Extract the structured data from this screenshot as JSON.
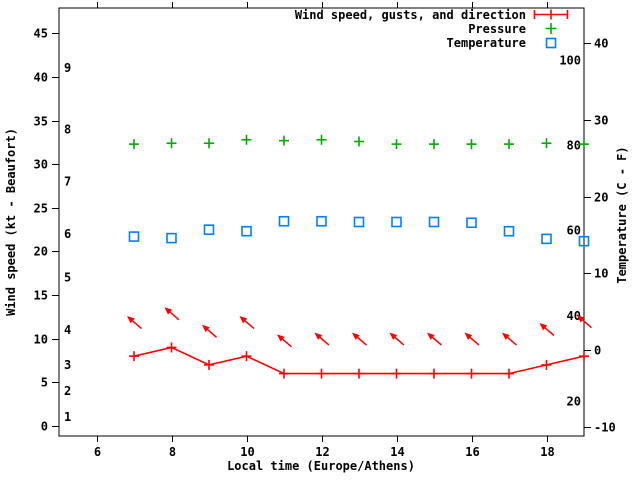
{
  "page": {
    "background": "#ffffff"
  },
  "colors": {
    "wind": "#ff0000",
    "pressure": "#00aa00",
    "temperature": "#0080ff",
    "text": "#000000",
    "axis": "#000000"
  },
  "legend": {
    "position": "top-right-inside",
    "entries": [
      {
        "label": "Wind speed, gusts, and direction",
        "marker": "errorbar-plus",
        "series": "wind"
      },
      {
        "label": "Pressure",
        "marker": "plus",
        "series": "pressure"
      },
      {
        "label": "Temperature",
        "marker": "open-square",
        "series": "temperature"
      }
    ]
  },
  "chart_data": {
    "type": "line",
    "title": "",
    "grid": false,
    "x": [
      7,
      8,
      9,
      10,
      11,
      12,
      13,
      14,
      15,
      16,
      17,
      18,
      19
    ],
    "series": [
      {
        "name": "Wind speed, gusts, and direction",
        "axis": "left",
        "unit": "kt",
        "marker": "plus",
        "line": true,
        "values": [
          8,
          9,
          7,
          8,
          6,
          6,
          6,
          6,
          6,
          6,
          6,
          7,
          8
        ]
      },
      {
        "name": "Pressure",
        "axis": "left",
        "unit": "left-axis scale units (pressure curve, no printed scale)",
        "marker": "plus",
        "line": false,
        "values": [
          32.3,
          32.4,
          32.4,
          32.8,
          32.7,
          32.8,
          32.6,
          32.3,
          32.3,
          32.3,
          32.3,
          32.4,
          32.3
        ]
      },
      {
        "name": "Temperature",
        "axis": "right",
        "unit": "C",
        "marker": "open-square",
        "line": false,
        "values": [
          14.8,
          14.6,
          15.7,
          15.5,
          16.8,
          16.8,
          16.7,
          16.7,
          16.7,
          16.6,
          15.5,
          14.5,
          14.2
        ]
      }
    ],
    "wind_direction_arrows": {
      "description": "red vectors pointing up-left (northwest) above the wind-speed line, one per hour",
      "head_kt": [
        12.6,
        13.6,
        11.6,
        12.6,
        10.5,
        10.7,
        10.7,
        10.7,
        10.7,
        10.7,
        10.7,
        11.8,
        12.7
      ]
    },
    "axes": {
      "x": {
        "label": "Local time (Europe/Athens)",
        "range": [
          5,
          19
        ],
        "ticks": [
          6,
          8,
          10,
          12,
          14,
          16,
          18
        ]
      },
      "y_left": {
        "label": "Wind speed (kt - Beaufort)",
        "range": [
          -1.15,
          47.9
        ],
        "ticks": [
          0,
          5,
          10,
          15,
          20,
          25,
          30,
          35,
          40,
          45
        ],
        "beaufort_labels": [
          {
            "label": "1",
            "kt": 1
          },
          {
            "label": "2",
            "kt": 4
          },
          {
            "label": "3",
            "kt": 7
          },
          {
            "label": "4",
            "kt": 11
          },
          {
            "label": "5",
            "kt": 17
          },
          {
            "label": "6",
            "kt": 22
          },
          {
            "label": "7",
            "kt": 28
          },
          {
            "label": "8",
            "kt": 34
          },
          {
            "label": "9",
            "kt": 41
          }
        ]
      },
      "y_right": {
        "label": "Temperature (C - F)",
        "range": [
          -11.2,
          44.6
        ],
        "ticks": [
          -10,
          0,
          10,
          20,
          30,
          40
        ],
        "fahrenheit_labels": [
          {
            "label": "20",
            "c": -6.67
          },
          {
            "label": "40",
            "c": 4.44
          },
          {
            "label": "60",
            "c": 15.56
          },
          {
            "label": "80",
            "c": 26.67
          },
          {
            "label": "100",
            "c": 37.78
          }
        ]
      }
    }
  }
}
